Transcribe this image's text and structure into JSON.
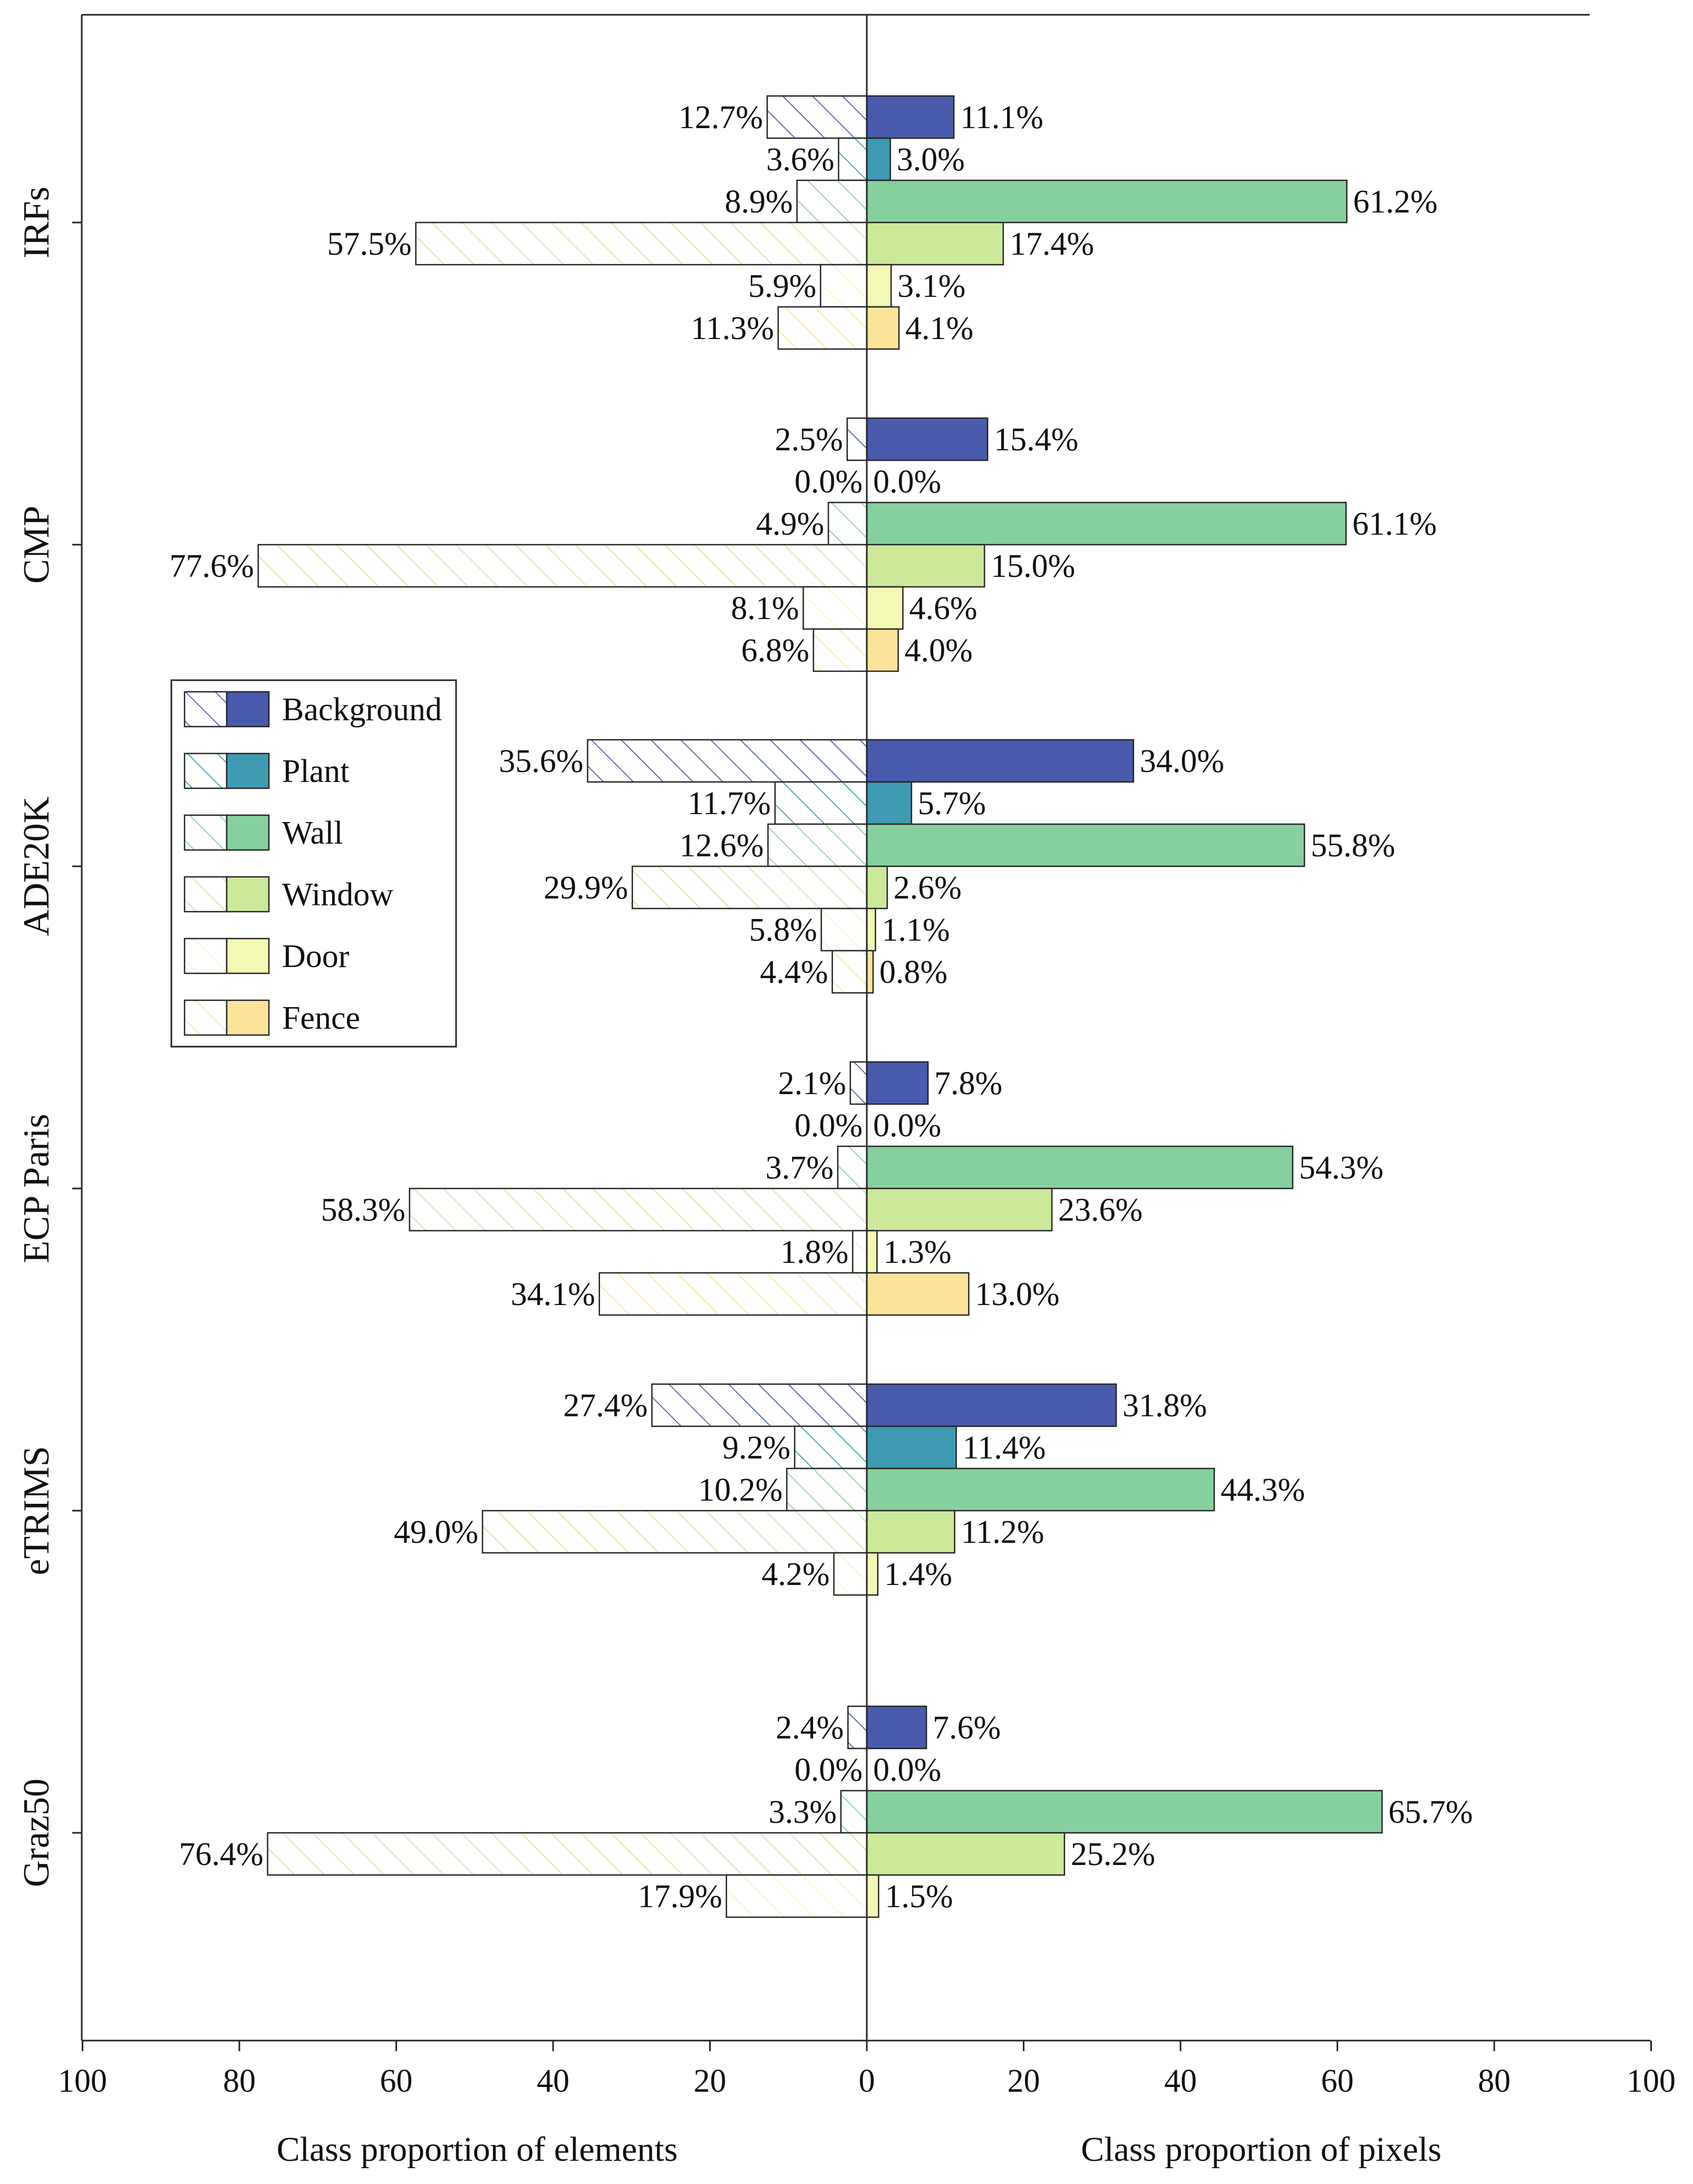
{
  "chart_data": {
    "type": "bar",
    "orientation": "horizontal-back-to-back",
    "categories": [
      "IRFs",
      "CMP",
      "ADE20K",
      "ECP Paris",
      "eTRIMS",
      "Graz50"
    ],
    "classes": [
      "Background",
      "Plant",
      "Wall",
      "Window",
      "Door",
      "Fence"
    ],
    "colors": {
      "Background": "#4a5aad",
      "Plant": "#3e9bb1",
      "Wall": "#86d09e",
      "Window": "#cce99a",
      "Door": "#f3f8b4",
      "Fence": "#fde39a"
    },
    "left_series": {
      "name": "Class proportion of elements",
      "values": {
        "IRFs": [
          12.7,
          3.6,
          8.9,
          57.5,
          5.9,
          11.3
        ],
        "CMP": [
          2.5,
          0.0,
          4.9,
          77.6,
          8.1,
          6.8
        ],
        "ADE20K": [
          35.6,
          11.7,
          12.6,
          29.9,
          5.8,
          4.4
        ],
        "ECP Paris": [
          2.1,
          0.0,
          3.7,
          58.3,
          1.8,
          34.1
        ],
        "eTRIMS": [
          27.4,
          9.2,
          10.2,
          49.0,
          4.2,
          null
        ],
        "Graz50": [
          2.4,
          0.0,
          3.3,
          76.4,
          17.9,
          null
        ]
      }
    },
    "right_series": {
      "name": "Class proportion of pixels",
      "values": {
        "IRFs": [
          11.1,
          3.0,
          61.2,
          17.4,
          3.1,
          4.1
        ],
        "CMP": [
          15.4,
          0.0,
          61.1,
          15.0,
          4.6,
          4.0
        ],
        "ADE20K": [
          34.0,
          5.7,
          55.8,
          2.6,
          1.1,
          0.8
        ],
        "ECP Paris": [
          7.8,
          0.0,
          54.3,
          23.6,
          1.3,
          13.0
        ],
        "eTRIMS": [
          31.8,
          11.4,
          44.3,
          11.2,
          1.4,
          null
        ],
        "Graz50": [
          7.6,
          0.0,
          65.7,
          25.2,
          1.5,
          null
        ]
      }
    },
    "x_ticks_left": [
      "100",
      "80",
      "60",
      "40",
      "20",
      "0"
    ],
    "x_ticks_right": [
      "20",
      "40",
      "60",
      "80",
      "100"
    ],
    "xlim": [
      -100,
      100
    ],
    "xlabel_left": "Class proportion of elements",
    "xlabel_right": "Class proportion of pixels",
    "legend_position": "middle-left",
    "left_style": "hatched",
    "right_style": "solid"
  }
}
